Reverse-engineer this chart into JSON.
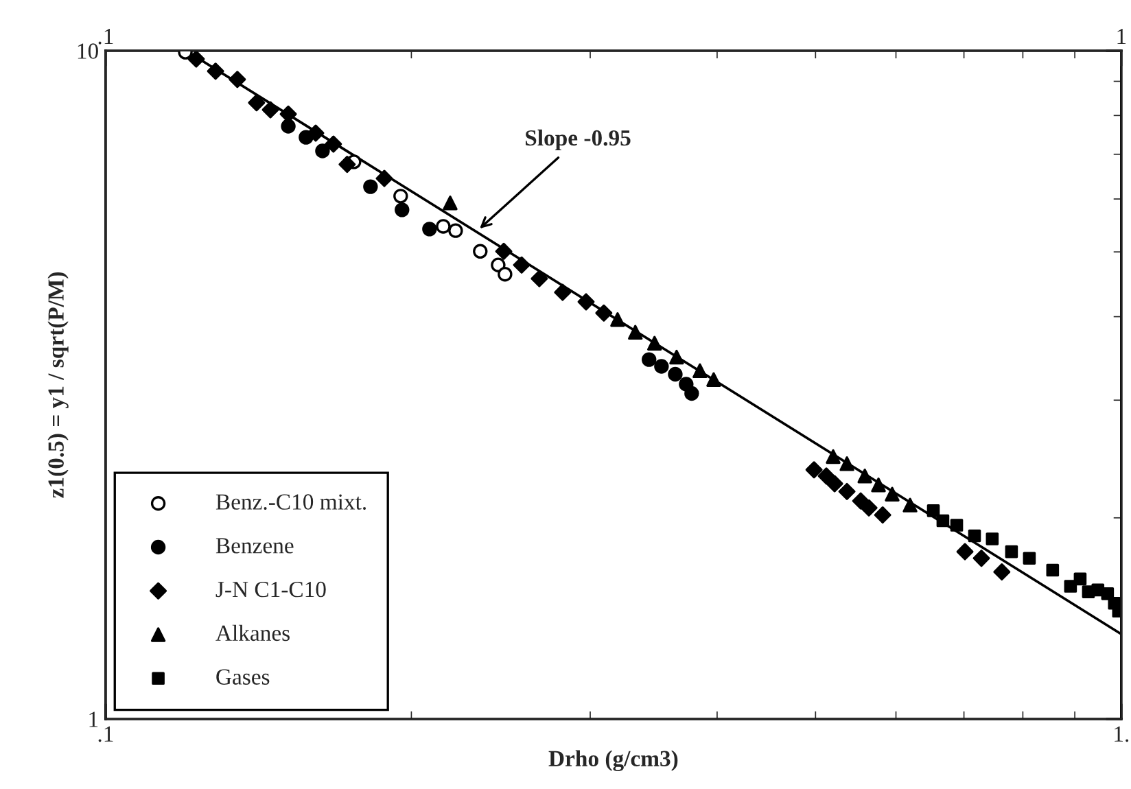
{
  "chart_data": {
    "type": "scatter",
    "xlabel": "Drho (g/cm3)",
    "ylabel": "z1(0.5) = y1 / sqrt(P/M)",
    "log": "xy",
    "xlim": [
      0.1,
      1
    ],
    "ylim": [
      1,
      10
    ],
    "xticks": [
      {
        "value": 0.1,
        "label": ".1"
      },
      {
        "value": 1,
        "label": "1."
      }
    ],
    "x2lim": [
      0.1,
      1
    ],
    "x2ticks": [
      {
        "value": 0.1,
        "label": ".1"
      },
      {
        "value": 1,
        "label": "1"
      }
    ],
    "yticks": [
      10,
      1
    ],
    "legend": "bottom left",
    "annotations": [
      {
        "text": "Slope -0.95",
        "x": 0.232,
        "y": 5.37
      }
    ],
    "series": [
      {
        "name": "Benz.-C10 mixt.",
        "color": "#ffffff",
        "marker": "circle",
        "x": [
          0.1198,
          0.1756,
          0.1952,
          0.215,
          0.2211,
          0.2338,
          0.2435,
          0.2473
        ],
        "values": [
          9.95,
          6.82,
          6.06,
          5.46,
          5.38,
          5.01,
          4.78,
          4.63
        ]
      },
      {
        "name": "Benzene",
        "color": "#000000",
        "marker": "circle",
        "x": [
          0.1513,
          0.1575,
          0.1635,
          0.1823,
          0.1958,
          0.2084,
          0.3428,
          0.3526,
          0.3638,
          0.3729,
          0.3776
        ],
        "values": [
          7.71,
          7.42,
          7.08,
          6.26,
          5.78,
          5.41,
          3.45,
          3.37,
          3.28,
          3.17,
          3.07
        ]
      },
      {
        "name": "J-N C1-C10",
        "color": "#000000",
        "marker": "diamond",
        "x": [
          0.1228,
          0.1283,
          0.1348,
          0.1408,
          0.1453,
          0.1513,
          0.161,
          0.1676,
          0.1729,
          0.1881,
          0.2466,
          0.2568,
          0.2673,
          0.2818,
          0.2972,
          0.3094,
          0.4983,
          0.5124,
          0.5221,
          0.5369,
          0.5539,
          0.5643,
          0.5822,
          0.7016,
          0.7283,
          0.7628
        ],
        "values": [
          9.72,
          9.32,
          9.06,
          8.36,
          8.16,
          8.04,
          7.53,
          7.25,
          6.76,
          6.44,
          5.01,
          4.78,
          4.56,
          4.35,
          4.21,
          4.05,
          2.36,
          2.31,
          2.25,
          2.19,
          2.12,
          2.07,
          2.02,
          1.78,
          1.74,
          1.66
        ]
      },
      {
        "name": "Alkanes",
        "color": "#000000",
        "marker": "triangle",
        "x": [
          0.2184,
          0.3192,
          0.3323,
          0.3471,
          0.3649,
          0.3847,
          0.3969,
          0.5204,
          0.5369,
          0.5591,
          0.5767,
          0.5949,
          0.6195
        ],
        "values": [
          5.92,
          3.96,
          3.79,
          3.65,
          3.48,
          3.32,
          3.22,
          2.47,
          2.41,
          2.31,
          2.24,
          2.17,
          2.09
        ]
      },
      {
        "name": "Gases",
        "color": "#000000",
        "marker": "square",
        "x": [
          0.6531,
          0.6674,
          0.6886,
          0.717,
          0.7464,
          0.7797,
          0.8119,
          0.8559,
          0.8913,
          0.911,
          0.9282,
          0.9484,
          0.9694,
          0.9845,
          0.9938
        ],
        "values": [
          2.05,
          1.98,
          1.95,
          1.88,
          1.86,
          1.78,
          1.74,
          1.67,
          1.58,
          1.62,
          1.55,
          1.56,
          1.54,
          1.49,
          1.45
        ]
      },
      {
        "type": "line",
        "color": "#000000",
        "marker": "none",
        "line_style": "solid",
        "x": [
          0.12,
          1
        ],
        "values": [
          10.0,
          1.34
        ]
      }
    ]
  }
}
